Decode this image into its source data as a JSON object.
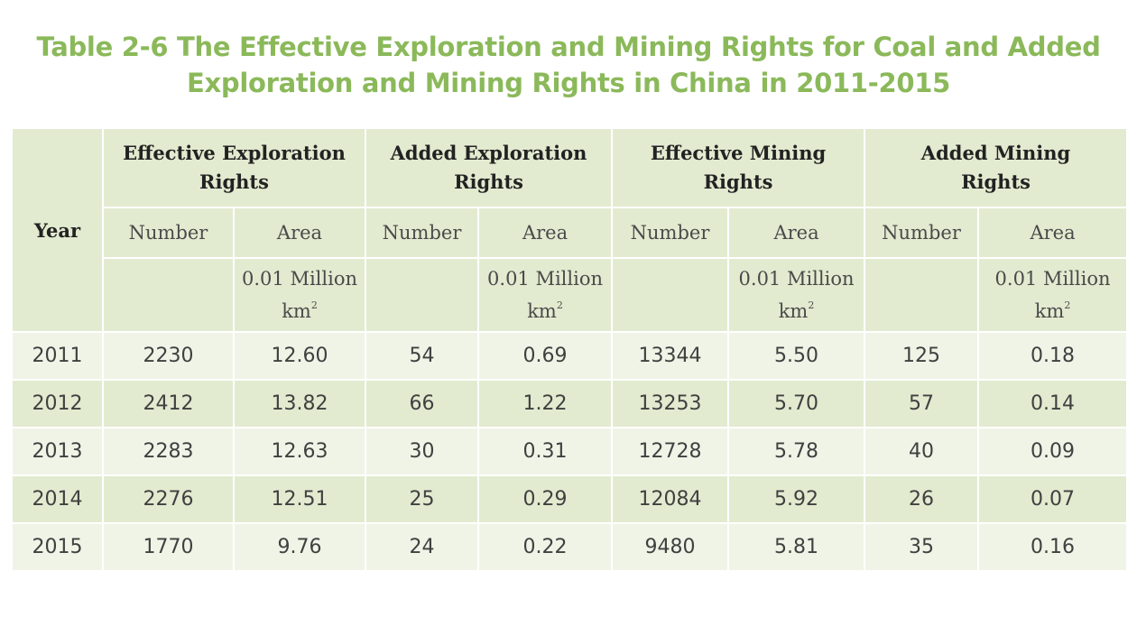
{
  "title": {
    "line1": "Table 2-6 The Effective Exploration and Mining Rights for Coal and Added",
    "line2": "Exploration and Mining Rights in China in 2011-2015"
  },
  "header": {
    "year": "Year",
    "groups": [
      {
        "line1": "Effective Exploration",
        "line2": "Rights"
      },
      {
        "line1": "Added Exploration",
        "line2": "Rights"
      },
      {
        "line1": "Effective Mining",
        "line2": "Rights"
      },
      {
        "line1": "Added Mining",
        "line2": "Rights"
      }
    ],
    "number_label": "Number",
    "area_label": "Area",
    "unit_line1": "0.01 Million",
    "unit_km": "km",
    "unit_sup": "2"
  },
  "rows": [
    {
      "year": "2011",
      "values": [
        "2230",
        "12.60",
        "54",
        "0.69",
        "13344",
        "5.50",
        "125",
        "0.18"
      ]
    },
    {
      "year": "2012",
      "values": [
        "2412",
        "13.82",
        "66",
        "1.22",
        "13253",
        "5.70",
        "57",
        "0.14"
      ]
    },
    {
      "year": "2013",
      "values": [
        "2283",
        "12.63",
        "30",
        "0.31",
        "12728",
        "5.78",
        "40",
        "0.09"
      ]
    },
    {
      "year": "2014",
      "values": [
        "2276",
        "12.51",
        "25",
        "0.29",
        "12084",
        "5.92",
        "26",
        "0.07"
      ]
    },
    {
      "year": "2015",
      "values": [
        "1770",
        "9.76",
        "24",
        "0.22",
        "9480",
        "5.81",
        "35",
        "0.16"
      ]
    }
  ],
  "colors": {
    "title": "#8bb95a",
    "header_bg": "#e2ebd0",
    "row_light": "#f0f4e7",
    "row_dark": "#e2ebd0"
  }
}
